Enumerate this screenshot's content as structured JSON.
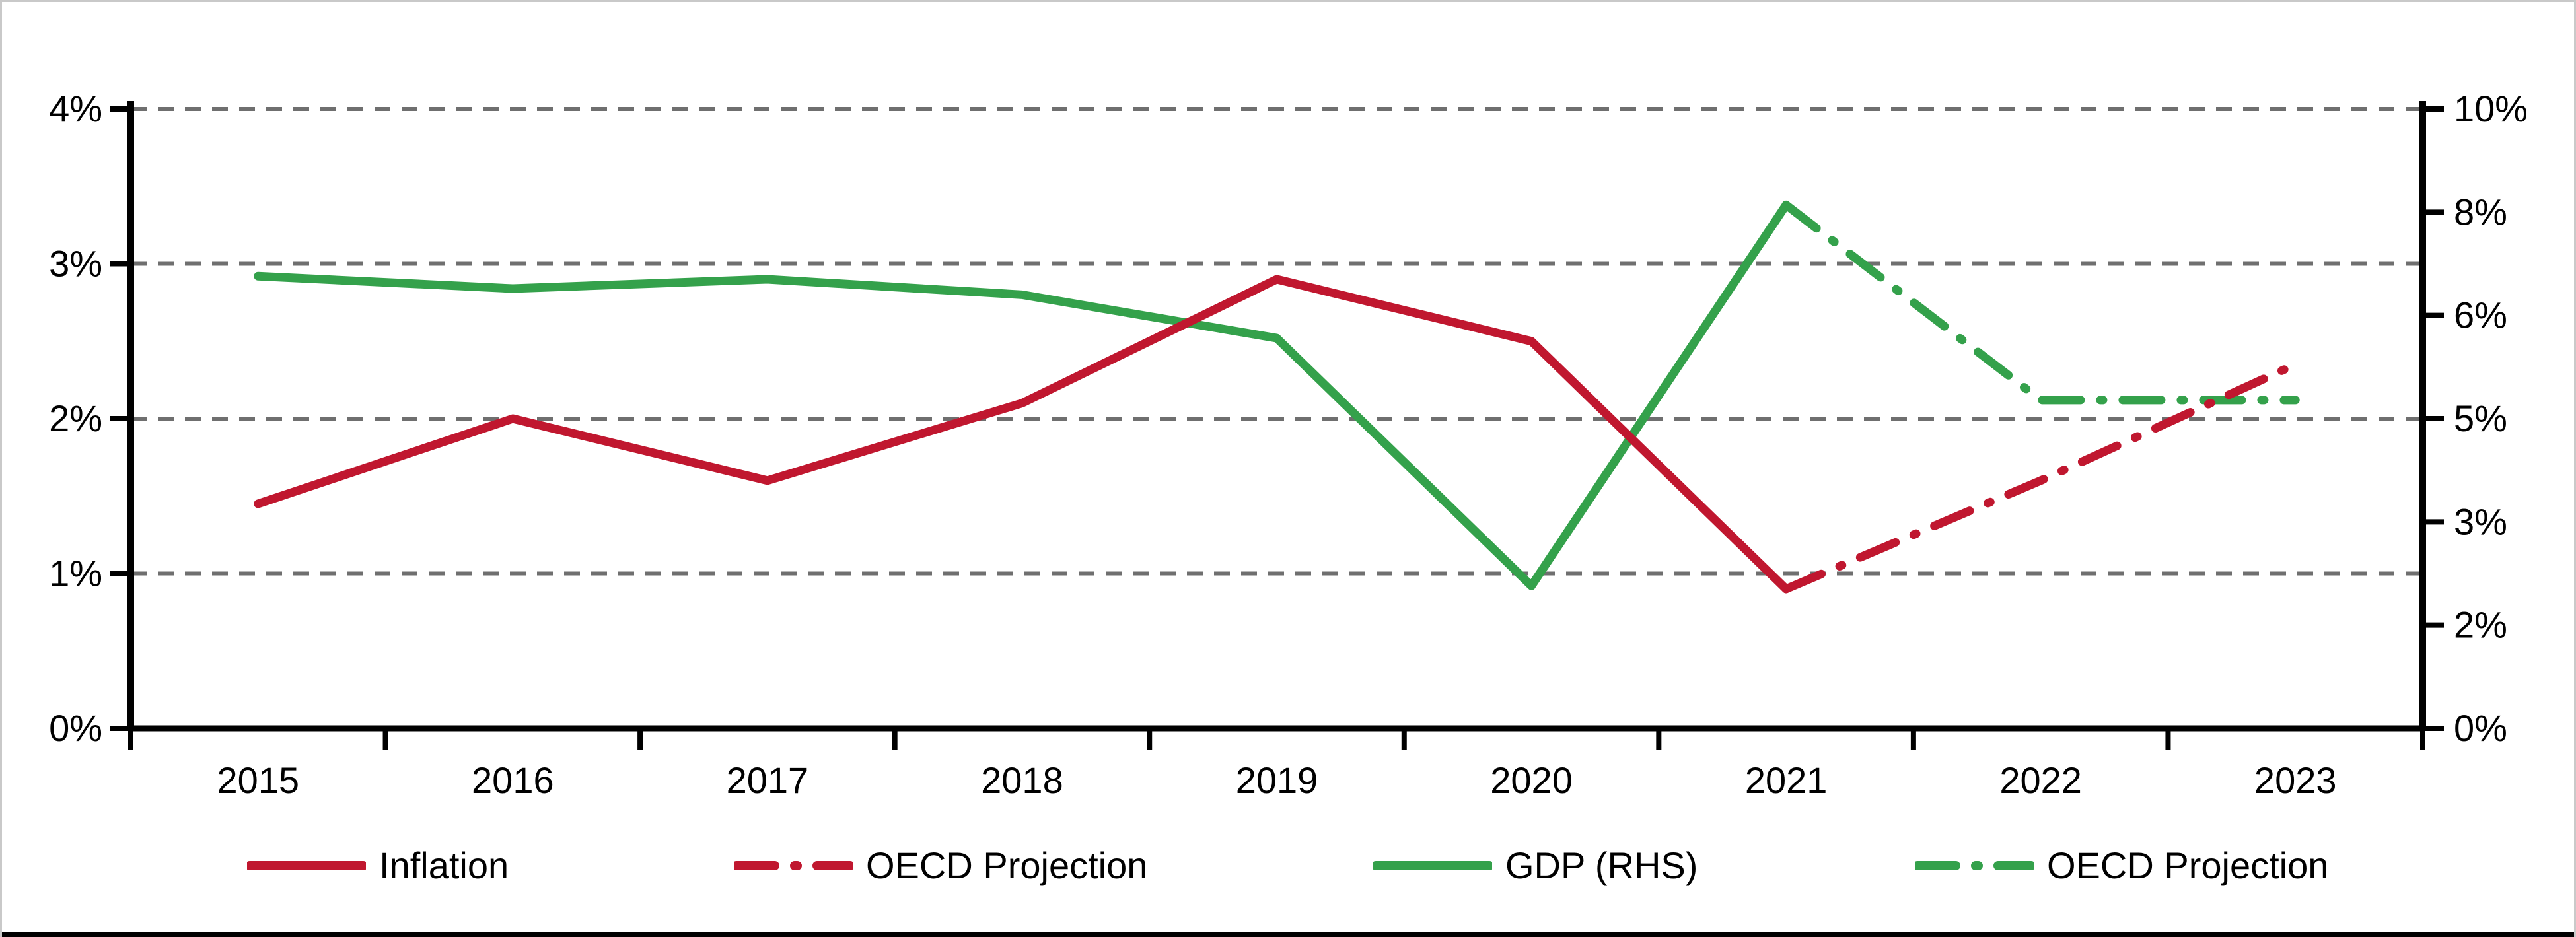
{
  "chart_data": {
    "type": "line",
    "title": "",
    "categories": [
      "2015",
      "2016",
      "2017",
      "2018",
      "2019",
      "2020",
      "2021",
      "2022",
      "2023"
    ],
    "left_axis": {
      "tick_labels_top_to_bottom": [
        "4%",
        "3%",
        "2%",
        "1%",
        "0%"
      ],
      "range": [
        0,
        4
      ],
      "gridlines": "dashed-gray"
    },
    "right_axis": {
      "tick_labels_top_to_bottom": [
        "10%",
        "8%",
        "6%",
        "5%",
        "3%",
        "2%",
        "0%"
      ],
      "range": [
        0,
        10
      ],
      "note": "seven evenly spaced ticks; top aligns with left-axis 4%"
    },
    "series": [
      {
        "name": "Inflation",
        "axis": "left",
        "style": "solid",
        "color": "#C0172F",
        "x": [
          "2015",
          "2016",
          "2017",
          "2018",
          "2019",
          "2020",
          "2021"
        ],
        "values": [
          1.45,
          2.0,
          1.6,
          2.1,
          2.9,
          2.5,
          0.9
        ]
      },
      {
        "name": "OECD Projection",
        "axis": "left",
        "style": "dashdot",
        "color": "#C0172F",
        "x": [
          "2021",
          "2022",
          "2023"
        ],
        "values": [
          0.9,
          1.6,
          2.35
        ]
      },
      {
        "name": "GDP (RHS)",
        "axis": "right",
        "style": "solid",
        "color": "#34A14B",
        "x": [
          "2015",
          "2016",
          "2017",
          "2018",
          "2019",
          "2020",
          "2021"
        ],
        "values": [
          7.3,
          7.1,
          7.25,
          7.0,
          6.3,
          2.3,
          8.45
        ]
      },
      {
        "name": "OECD Projection",
        "axis": "right",
        "style": "dashdot",
        "color": "#34A14B",
        "x": [
          "2021",
          "2022",
          "2023"
        ],
        "values": [
          8.45,
          5.3,
          5.3
        ]
      }
    ],
    "legend_position": "bottom",
    "colors": {
      "gridline": "#6F6F6F",
      "axis": "#000000",
      "frame_border": "#C9C9C9",
      "background": "#FFFFFF"
    }
  }
}
